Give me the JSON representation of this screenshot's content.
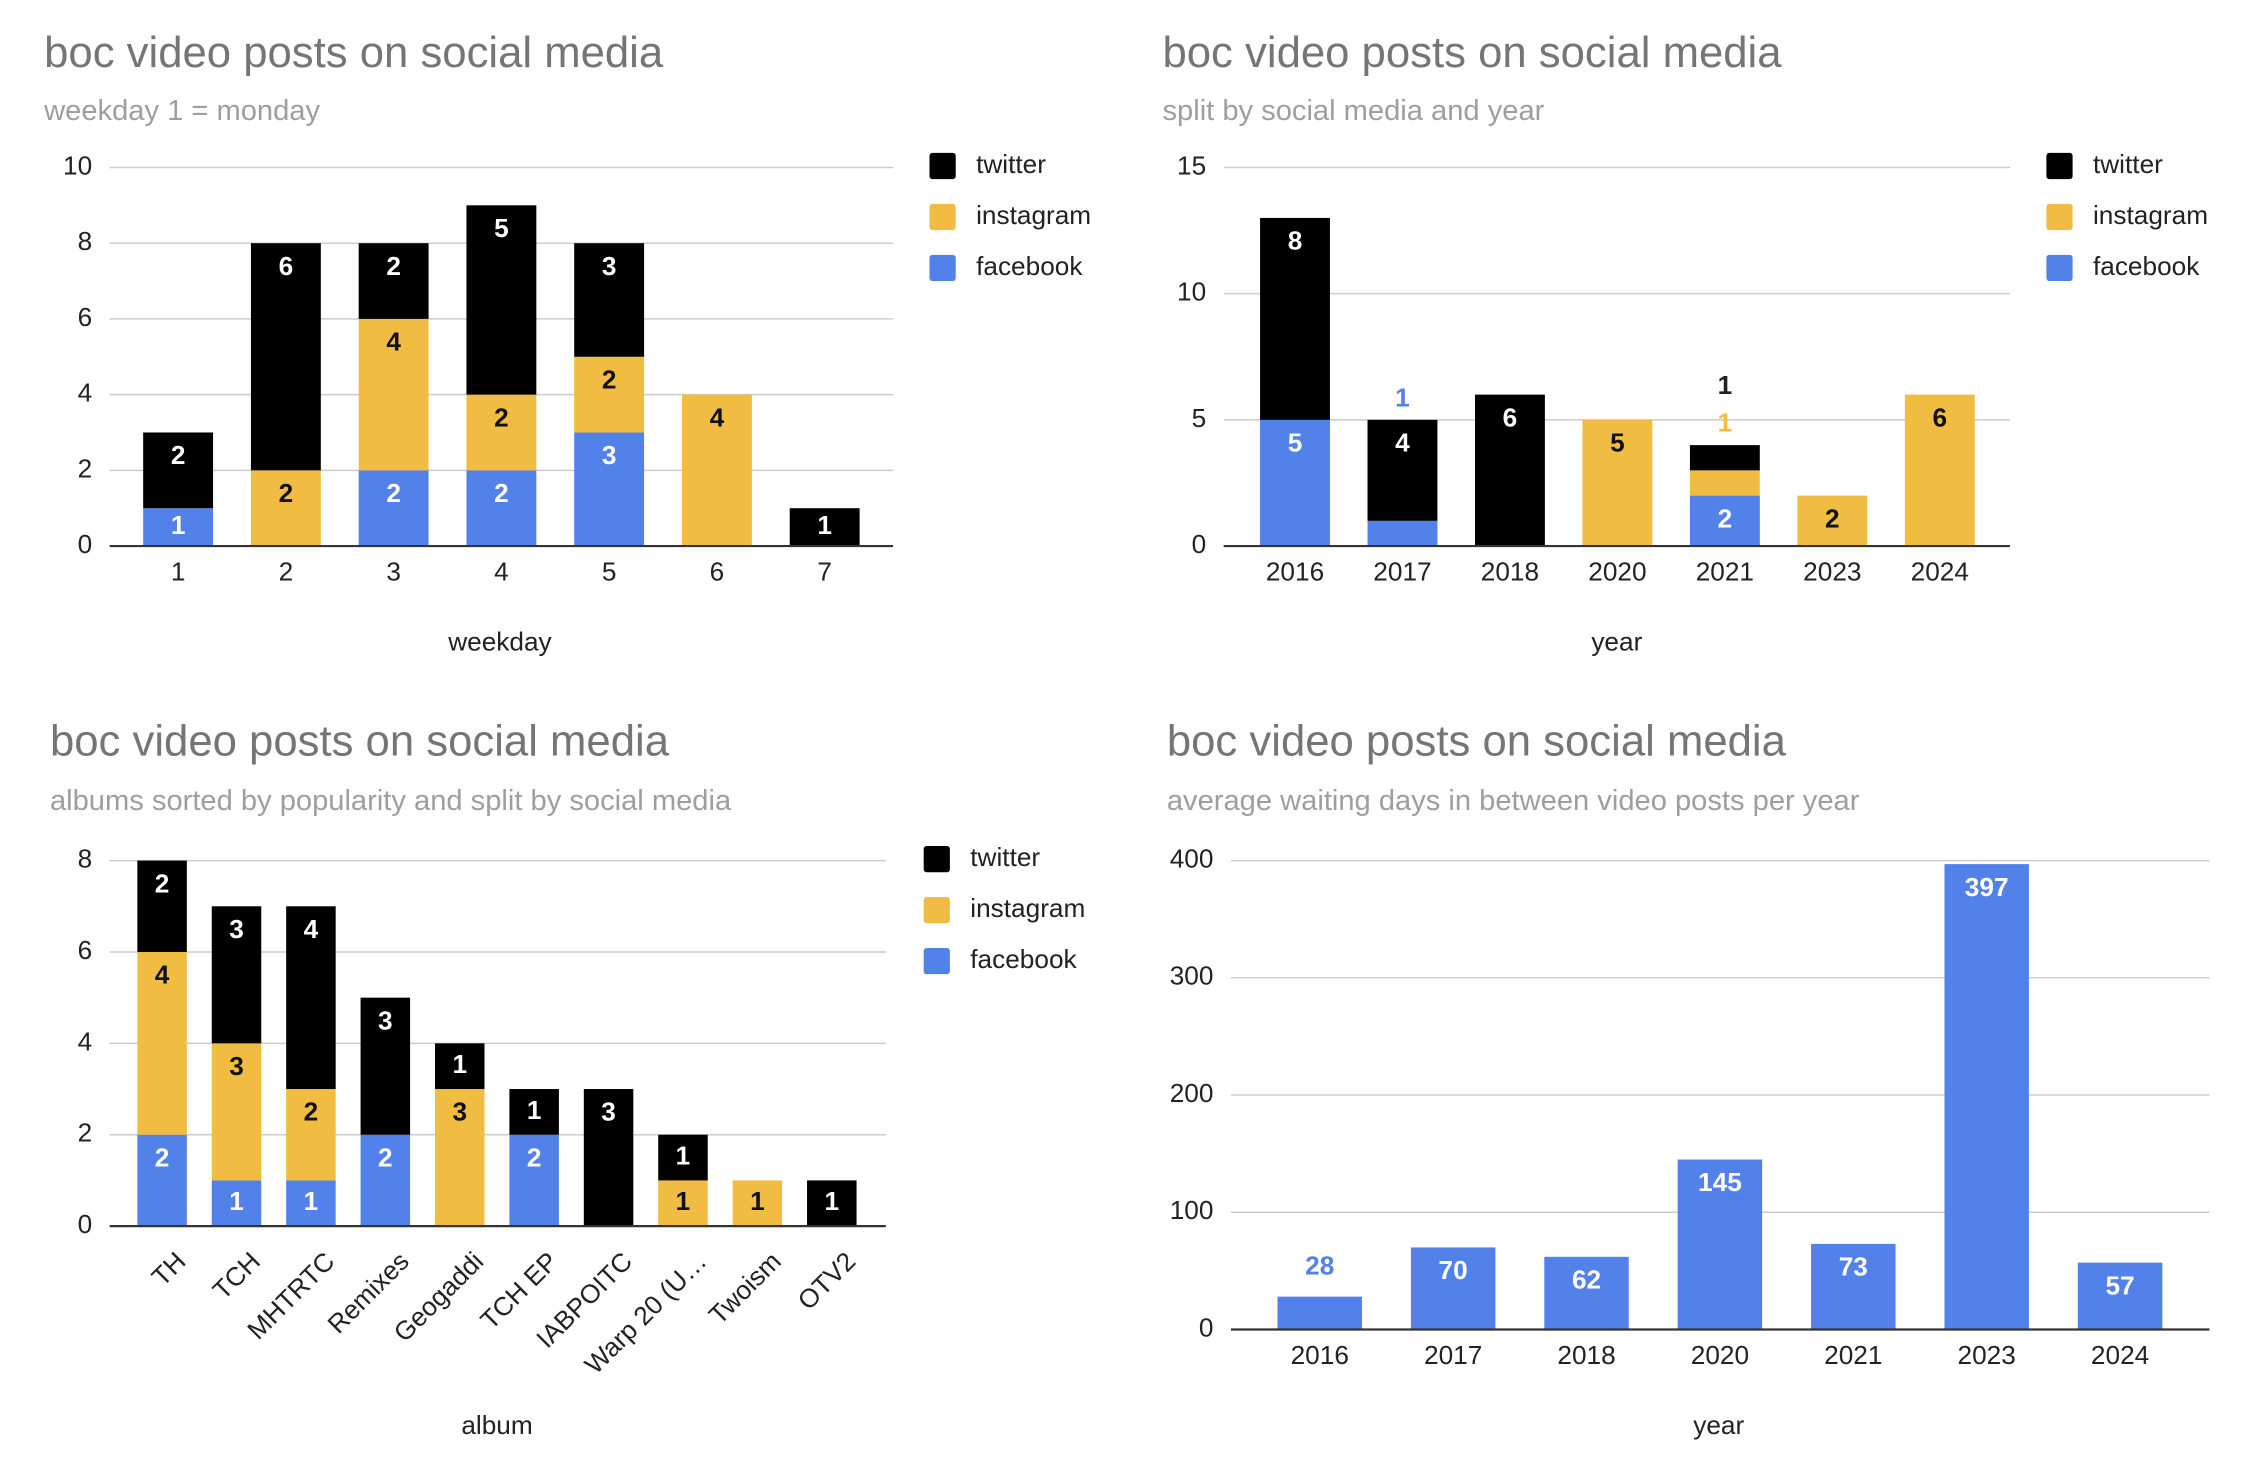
{
  "colors": {
    "twitter": "#000000",
    "instagram": "#f1bc42",
    "facebook": "#5282e9"
  },
  "chart_data": [
    {
      "type": "bar",
      "stacked": true,
      "title": "boc video posts on social media",
      "subtitle": "weekday 1 = monday",
      "xlabel": "weekday",
      "ylabel": "",
      "ylim": [
        0,
        10
      ],
      "yticks": [
        0,
        2,
        4,
        6,
        8,
        10
      ],
      "legend": "right",
      "grid": true,
      "categories": [
        "1",
        "2",
        "3",
        "4",
        "5",
        "6",
        "7"
      ],
      "series": [
        {
          "name": "facebook",
          "values": [
            1,
            0,
            2,
            2,
            3,
            0,
            0
          ]
        },
        {
          "name": "instagram",
          "values": [
            0,
            2,
            4,
            2,
            2,
            4,
            0
          ]
        },
        {
          "name": "twitter",
          "values": [
            2,
            6,
            2,
            5,
            3,
            0,
            1
          ]
        }
      ]
    },
    {
      "type": "bar",
      "stacked": true,
      "title": "boc video posts on social media",
      "subtitle": "split by social media and year",
      "xlabel": "year",
      "ylabel": "",
      "ylim": [
        0,
        15
      ],
      "yticks": [
        0,
        5,
        10,
        15
      ],
      "legend": "right",
      "grid": true,
      "categories": [
        "2016",
        "2017",
        "2018",
        "2020",
        "2021",
        "2023",
        "2024"
      ],
      "series": [
        {
          "name": "facebook",
          "values": [
            5,
            1,
            0,
            0,
            2,
            0,
            0
          ]
        },
        {
          "name": "instagram",
          "values": [
            0,
            0,
            0,
            5,
            1,
            2,
            6
          ]
        },
        {
          "name": "twitter",
          "values": [
            8,
            4,
            6,
            0,
            1,
            0,
            0
          ]
        }
      ]
    },
    {
      "type": "bar",
      "stacked": true,
      "title": "boc video posts on social media",
      "subtitle": "albums sorted by popularity and split by social media",
      "xlabel": "album",
      "ylabel": "",
      "ylim": [
        0,
        8
      ],
      "yticks": [
        0,
        2,
        4,
        6,
        8
      ],
      "legend": "right",
      "grid": true,
      "categories": [
        "TH",
        "TCH",
        "MHTRTC",
        "Remixes",
        "Geogaddi",
        "TCH EP",
        "IABPOITC",
        "Warp 20 (U…",
        "Twoism",
        "OTV2"
      ],
      "series": [
        {
          "name": "facebook",
          "values": [
            2,
            1,
            1,
            2,
            0,
            2,
            0,
            0,
            0,
            0
          ]
        },
        {
          "name": "instagram",
          "values": [
            4,
            3,
            2,
            0,
            3,
            0,
            0,
            1,
            1,
            0
          ]
        },
        {
          "name": "twitter",
          "values": [
            2,
            3,
            4,
            3,
            1,
            1,
            3,
            1,
            0,
            1
          ]
        }
      ]
    },
    {
      "type": "bar",
      "stacked": false,
      "title": "boc video posts on social media",
      "subtitle": "average waiting days in between video posts per year",
      "xlabel": "year",
      "ylabel": "",
      "ylim": [
        0,
        400
      ],
      "yticks": [
        0,
        100,
        200,
        300,
        400
      ],
      "legend": "none",
      "grid": true,
      "categories": [
        "2016",
        "2017",
        "2018",
        "2020",
        "2021",
        "2023",
        "2024"
      ],
      "series": [
        {
          "name": "facebook",
          "values": [
            28,
            70,
            62,
            145,
            73,
            397,
            57
          ]
        }
      ]
    }
  ]
}
